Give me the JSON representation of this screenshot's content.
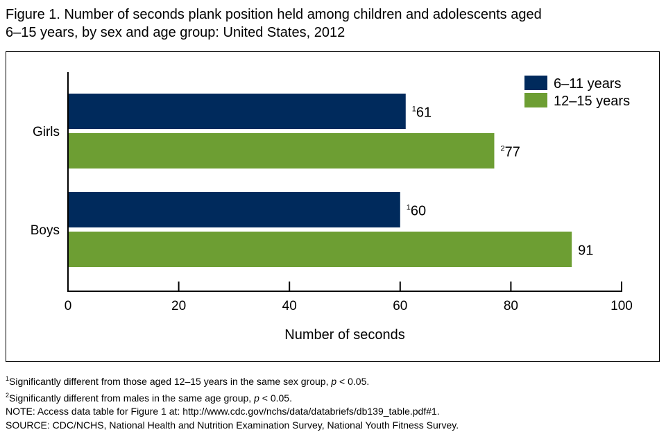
{
  "title_line1": "Figure 1. Number of seconds plank position held among children and adolescents aged",
  "title_line2": "6–15 years, by sex and age group: United States, 2012",
  "chart_data": {
    "type": "bar",
    "orientation": "horizontal",
    "categories": [
      "Girls",
      "Boys"
    ],
    "series": [
      {
        "name": "6–11 years",
        "color": "#002a5c",
        "values": [
          61,
          60
        ],
        "labels": [
          "61",
          "60"
        ],
        "marks": [
          "1",
          "1"
        ]
      },
      {
        "name": "12–15 years",
        "color": "#6d9e33",
        "values": [
          77,
          91
        ],
        "labels": [
          "77",
          "91"
        ],
        "marks": [
          "2",
          ""
        ]
      }
    ],
    "xlabel": "Number of seconds",
    "xlim": [
      0,
      100
    ],
    "xticks": [
      "0",
      "20",
      "40",
      "60",
      "80",
      "100"
    ],
    "legend": "top-right"
  },
  "footnotes": [
    {
      "mark": "1",
      "text": "Significantly different from those aged 12–15 years in the same sex group, ",
      "p": "p",
      "tail": " < 0.05."
    },
    {
      "mark": "2",
      "text": "Significantly different from males in the same age group, ",
      "p": "p",
      "tail": " < 0.05."
    }
  ],
  "note": "NOTE: Access data table for Figure 1 at: http://www.cdc.gov/nchs/data/databriefs/db139_table.pdf#1.",
  "source": "SOURCE: CDC/NCHS, National Health and Nutrition Examination Survey, National Youth Fitness Survey."
}
